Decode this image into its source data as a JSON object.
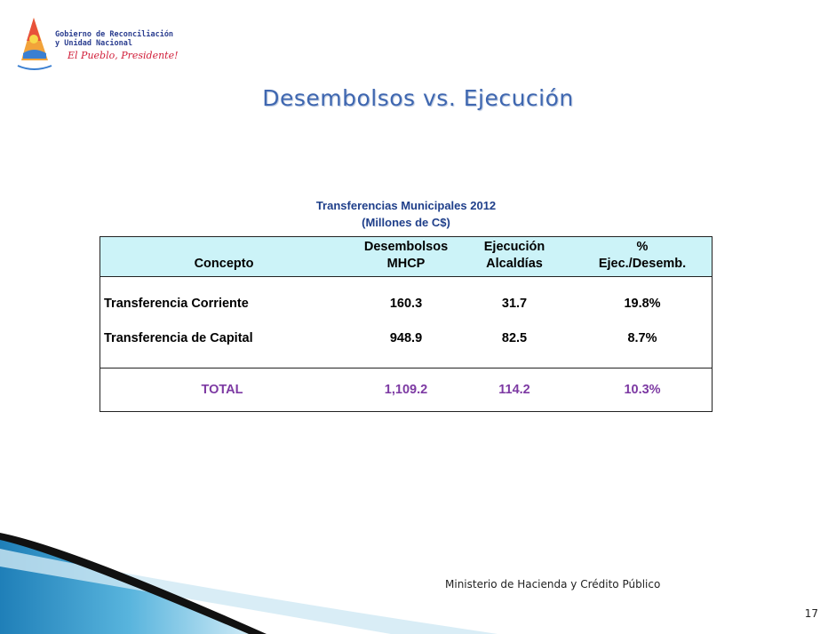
{
  "logo": {
    "line1": "Gobierno de Reconciliación",
    "line2": "y Unidad Nacional",
    "slogan": "El Pueblo, Presidente!"
  },
  "slide": {
    "title": "Desembolsos vs. Ejecución"
  },
  "table": {
    "title": "Transferencias Municipales  2012",
    "subtitle": "(Millones de C$)",
    "headers": {
      "concepto": "Concepto",
      "desembolsos_1": "Desembolsos",
      "desembolsos_2": "MHCP",
      "ejecucion_1": "Ejecución",
      "ejecucion_2": "Alcaldías",
      "pct_1": "%",
      "pct_2": "Ejec./Desemb."
    },
    "rows": [
      {
        "concepto": "Transferencia Corriente",
        "desembolsos": "160.3",
        "ejecucion": "31.7",
        "pct": "19.8%"
      },
      {
        "concepto": "Transferencia de Capital",
        "desembolsos": "948.9",
        "ejecucion": "82.5",
        "pct": "8.7%"
      }
    ],
    "total": {
      "concepto": "TOTAL",
      "desembolsos": "1,109.2",
      "ejecucion": "114.2",
      "pct": "10.3%"
    }
  },
  "footer": {
    "ministry": "Ministerio de Hacienda y Crédito Público",
    "page": "17"
  },
  "colors": {
    "title": "#3f67b0",
    "header_bg": "#ccf3f8",
    "total": "#7d3aa3",
    "swoosh": "#3a9fcf"
  }
}
